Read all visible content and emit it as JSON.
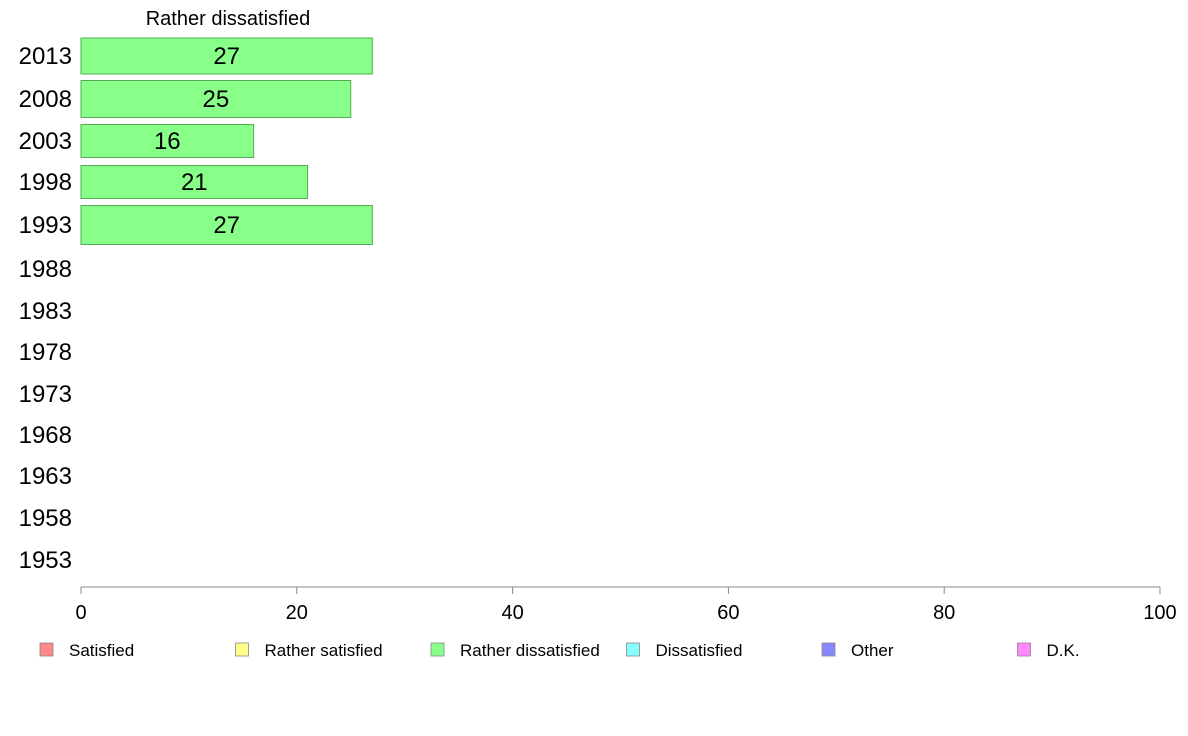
{
  "chart_data": {
    "type": "bar",
    "orientation": "horizontal",
    "series_title": "Rather dissatisfied",
    "categories": [
      "2013",
      "2008",
      "2003",
      "1998",
      "1993",
      "1988",
      "1983",
      "1978",
      "1973",
      "1968",
      "1963",
      "1958",
      "1953"
    ],
    "series": [
      {
        "name": "Rather dissatisfied",
        "color": "#88ff88",
        "values": [
          27,
          25,
          16,
          21,
          27,
          null,
          null,
          null,
          null,
          null,
          null,
          null,
          null
        ]
      }
    ],
    "xlim": [
      0,
      100
    ],
    "xticks": [
      0,
      20,
      40,
      60,
      80,
      100
    ],
    "legend": [
      {
        "label": "Satisfied",
        "color": "#ff8888"
      },
      {
        "label": "Rather satisfied",
        "color": "#ffff88"
      },
      {
        "label": "Rather dissatisfied",
        "color": "#88ff88"
      },
      {
        "label": "Dissatisfied",
        "color": "#88ffff"
      },
      {
        "label": "Other",
        "color": "#8888ff"
      },
      {
        "label": "D.K.",
        "color": "#ff88ff"
      }
    ],
    "legend_position": "bottom",
    "grid": false
  }
}
